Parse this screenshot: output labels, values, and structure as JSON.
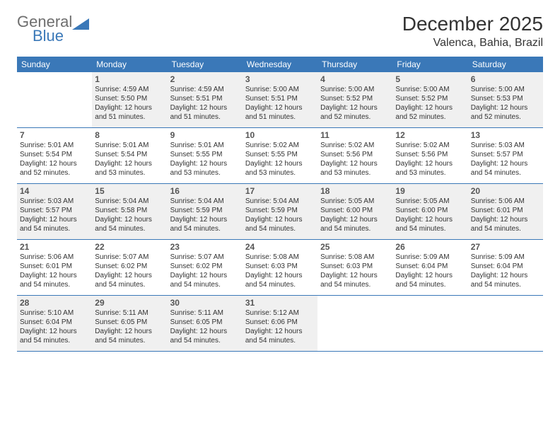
{
  "logo": {
    "text1": "General",
    "text2": "Blue",
    "text1_color": "#6e6e6e",
    "text2_color": "#3a78b8",
    "tri_color": "#3a78b8"
  },
  "header": {
    "month_title": "December 2025",
    "location": "Valenca, Bahia, Brazil"
  },
  "colors": {
    "header_bg": "#3a78b8",
    "header_text": "#ffffff",
    "shaded_bg": "#f0f0f0",
    "row_divider": "#3a78b8",
    "text": "#333333",
    "daynum": "#555555"
  },
  "weekdays": [
    "Sunday",
    "Monday",
    "Tuesday",
    "Wednesday",
    "Thursday",
    "Friday",
    "Saturday"
  ],
  "weeks": [
    [
      {
        "num": "",
        "sunrise": "",
        "sunset": "",
        "daylight": "",
        "shaded": false,
        "empty": true
      },
      {
        "num": "1",
        "sunrise": "Sunrise: 4:59 AM",
        "sunset": "Sunset: 5:50 PM",
        "daylight": "Daylight: 12 hours and 51 minutes.",
        "shaded": true
      },
      {
        "num": "2",
        "sunrise": "Sunrise: 4:59 AM",
        "sunset": "Sunset: 5:51 PM",
        "daylight": "Daylight: 12 hours and 51 minutes.",
        "shaded": true
      },
      {
        "num": "3",
        "sunrise": "Sunrise: 5:00 AM",
        "sunset": "Sunset: 5:51 PM",
        "daylight": "Daylight: 12 hours and 51 minutes.",
        "shaded": true
      },
      {
        "num": "4",
        "sunrise": "Sunrise: 5:00 AM",
        "sunset": "Sunset: 5:52 PM",
        "daylight": "Daylight: 12 hours and 52 minutes.",
        "shaded": true
      },
      {
        "num": "5",
        "sunrise": "Sunrise: 5:00 AM",
        "sunset": "Sunset: 5:52 PM",
        "daylight": "Daylight: 12 hours and 52 minutes.",
        "shaded": true
      },
      {
        "num": "6",
        "sunrise": "Sunrise: 5:00 AM",
        "sunset": "Sunset: 5:53 PM",
        "daylight": "Daylight: 12 hours and 52 minutes.",
        "shaded": true
      }
    ],
    [
      {
        "num": "7",
        "sunrise": "Sunrise: 5:01 AM",
        "sunset": "Sunset: 5:54 PM",
        "daylight": "Daylight: 12 hours and 52 minutes.",
        "shaded": false
      },
      {
        "num": "8",
        "sunrise": "Sunrise: 5:01 AM",
        "sunset": "Sunset: 5:54 PM",
        "daylight": "Daylight: 12 hours and 53 minutes.",
        "shaded": false
      },
      {
        "num": "9",
        "sunrise": "Sunrise: 5:01 AM",
        "sunset": "Sunset: 5:55 PM",
        "daylight": "Daylight: 12 hours and 53 minutes.",
        "shaded": false
      },
      {
        "num": "10",
        "sunrise": "Sunrise: 5:02 AM",
        "sunset": "Sunset: 5:55 PM",
        "daylight": "Daylight: 12 hours and 53 minutes.",
        "shaded": false
      },
      {
        "num": "11",
        "sunrise": "Sunrise: 5:02 AM",
        "sunset": "Sunset: 5:56 PM",
        "daylight": "Daylight: 12 hours and 53 minutes.",
        "shaded": false
      },
      {
        "num": "12",
        "sunrise": "Sunrise: 5:02 AM",
        "sunset": "Sunset: 5:56 PM",
        "daylight": "Daylight: 12 hours and 53 minutes.",
        "shaded": false
      },
      {
        "num": "13",
        "sunrise": "Sunrise: 5:03 AM",
        "sunset": "Sunset: 5:57 PM",
        "daylight": "Daylight: 12 hours and 54 minutes.",
        "shaded": false
      }
    ],
    [
      {
        "num": "14",
        "sunrise": "Sunrise: 5:03 AM",
        "sunset": "Sunset: 5:57 PM",
        "daylight": "Daylight: 12 hours and 54 minutes.",
        "shaded": true
      },
      {
        "num": "15",
        "sunrise": "Sunrise: 5:04 AM",
        "sunset": "Sunset: 5:58 PM",
        "daylight": "Daylight: 12 hours and 54 minutes.",
        "shaded": true
      },
      {
        "num": "16",
        "sunrise": "Sunrise: 5:04 AM",
        "sunset": "Sunset: 5:59 PM",
        "daylight": "Daylight: 12 hours and 54 minutes.",
        "shaded": true
      },
      {
        "num": "17",
        "sunrise": "Sunrise: 5:04 AM",
        "sunset": "Sunset: 5:59 PM",
        "daylight": "Daylight: 12 hours and 54 minutes.",
        "shaded": true
      },
      {
        "num": "18",
        "sunrise": "Sunrise: 5:05 AM",
        "sunset": "Sunset: 6:00 PM",
        "daylight": "Daylight: 12 hours and 54 minutes.",
        "shaded": true
      },
      {
        "num": "19",
        "sunrise": "Sunrise: 5:05 AM",
        "sunset": "Sunset: 6:00 PM",
        "daylight": "Daylight: 12 hours and 54 minutes.",
        "shaded": true
      },
      {
        "num": "20",
        "sunrise": "Sunrise: 5:06 AM",
        "sunset": "Sunset: 6:01 PM",
        "daylight": "Daylight: 12 hours and 54 minutes.",
        "shaded": true
      }
    ],
    [
      {
        "num": "21",
        "sunrise": "Sunrise: 5:06 AM",
        "sunset": "Sunset: 6:01 PM",
        "daylight": "Daylight: 12 hours and 54 minutes.",
        "shaded": false
      },
      {
        "num": "22",
        "sunrise": "Sunrise: 5:07 AM",
        "sunset": "Sunset: 6:02 PM",
        "daylight": "Daylight: 12 hours and 54 minutes.",
        "shaded": false
      },
      {
        "num": "23",
        "sunrise": "Sunrise: 5:07 AM",
        "sunset": "Sunset: 6:02 PM",
        "daylight": "Daylight: 12 hours and 54 minutes.",
        "shaded": false
      },
      {
        "num": "24",
        "sunrise": "Sunrise: 5:08 AM",
        "sunset": "Sunset: 6:03 PM",
        "daylight": "Daylight: 12 hours and 54 minutes.",
        "shaded": false
      },
      {
        "num": "25",
        "sunrise": "Sunrise: 5:08 AM",
        "sunset": "Sunset: 6:03 PM",
        "daylight": "Daylight: 12 hours and 54 minutes.",
        "shaded": false
      },
      {
        "num": "26",
        "sunrise": "Sunrise: 5:09 AM",
        "sunset": "Sunset: 6:04 PM",
        "daylight": "Daylight: 12 hours and 54 minutes.",
        "shaded": false
      },
      {
        "num": "27",
        "sunrise": "Sunrise: 5:09 AM",
        "sunset": "Sunset: 6:04 PM",
        "daylight": "Daylight: 12 hours and 54 minutes.",
        "shaded": false
      }
    ],
    [
      {
        "num": "28",
        "sunrise": "Sunrise: 5:10 AM",
        "sunset": "Sunset: 6:04 PM",
        "daylight": "Daylight: 12 hours and 54 minutes.",
        "shaded": true
      },
      {
        "num": "29",
        "sunrise": "Sunrise: 5:11 AM",
        "sunset": "Sunset: 6:05 PM",
        "daylight": "Daylight: 12 hours and 54 minutes.",
        "shaded": true
      },
      {
        "num": "30",
        "sunrise": "Sunrise: 5:11 AM",
        "sunset": "Sunset: 6:05 PM",
        "daylight": "Daylight: 12 hours and 54 minutes.",
        "shaded": true
      },
      {
        "num": "31",
        "sunrise": "Sunrise: 5:12 AM",
        "sunset": "Sunset: 6:06 PM",
        "daylight": "Daylight: 12 hours and 54 minutes.",
        "shaded": true
      },
      {
        "num": "",
        "sunrise": "",
        "sunset": "",
        "daylight": "",
        "shaded": false,
        "empty": true
      },
      {
        "num": "",
        "sunrise": "",
        "sunset": "",
        "daylight": "",
        "shaded": false,
        "empty": true
      },
      {
        "num": "",
        "sunrise": "",
        "sunset": "",
        "daylight": "",
        "shaded": false,
        "empty": true
      }
    ]
  ]
}
